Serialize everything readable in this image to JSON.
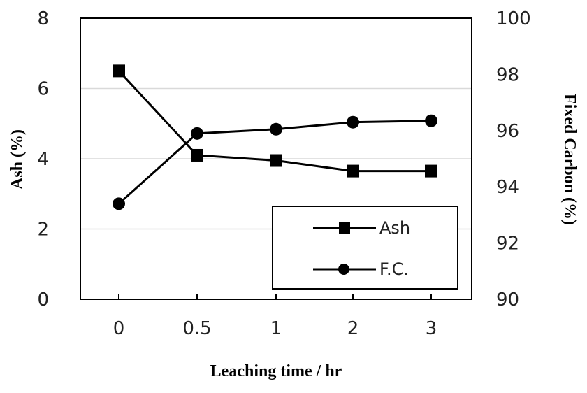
{
  "chart_data": {
    "type": "line",
    "categories": [
      "0",
      "0.5",
      "1",
      "2",
      "3"
    ],
    "xlabel": "Leaching time / hr",
    "ylabel": "Ash (%)",
    "y2label": "Fixed Carbon (%)",
    "ylim": [
      0,
      8
    ],
    "y2lim": [
      90,
      100
    ],
    "yticks": [
      "0",
      "2",
      "4",
      "6",
      "8"
    ],
    "y2ticks": [
      "90",
      "92",
      "94",
      "96",
      "98",
      "100"
    ],
    "grid": true,
    "legend_position": "bottom-right",
    "series": [
      {
        "name": "Ash",
        "axis": "left",
        "marker": "square",
        "values": [
          6.5,
          4.1,
          3.95,
          3.65,
          3.65
        ]
      },
      {
        "name": "F.C.",
        "axis": "right",
        "marker": "circle",
        "values": [
          93.4,
          95.9,
          96.05,
          96.3,
          96.35
        ]
      }
    ]
  }
}
